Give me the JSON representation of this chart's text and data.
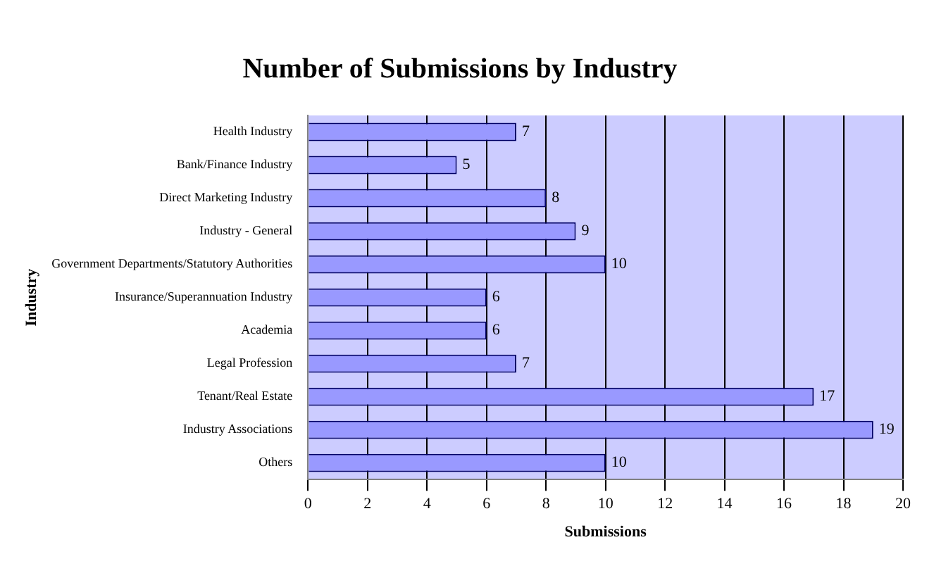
{
  "chart_data": {
    "type": "bar",
    "orientation": "horizontal",
    "title": "Number of Submissions by Industry",
    "xlabel": "Submissions",
    "ylabel": "Industry",
    "categories": [
      "Health Industry",
      "Bank/Finance Industry",
      "Direct Marketing Industry",
      "Industry - General",
      "Government Departments/Statutory Authorities",
      "Insurance/Superannuation Industry",
      "Academia",
      "Legal Profession",
      "Tenant/Real Estate",
      "Industry Associations",
      "Others"
    ],
    "values": [
      7,
      5,
      8,
      9,
      10,
      6,
      6,
      7,
      17,
      19,
      10
    ],
    "color": "#9999ff",
    "xlim": [
      0,
      20
    ],
    "xticks": [
      0,
      2,
      4,
      6,
      8,
      10,
      12,
      14,
      16,
      18,
      20
    ],
    "grid": "x",
    "data_labels": true,
    "legend": false
  }
}
